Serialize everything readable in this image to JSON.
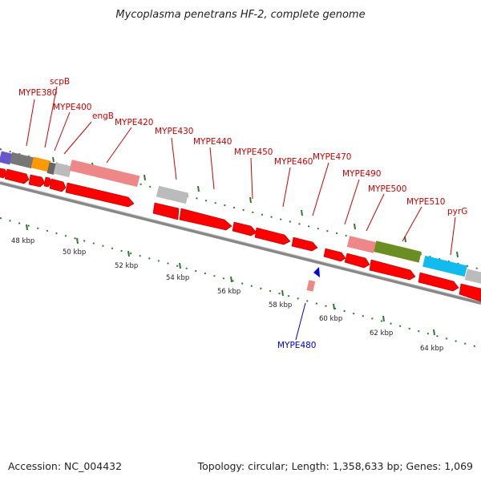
{
  "title": "Mycoplasma penetrans HF-2, complete genome",
  "footer": {
    "accession": "Accession: NC_004432",
    "summary": "Topology: circular; Length: 1,358,633 bp; Genes: 1,069"
  },
  "colors": {
    "gene_red": "#ff0000",
    "pseudo_pink": "#ee8888",
    "tick_green": "#337733",
    "label_red": "#cc0000",
    "label_blue": "#0000cc",
    "backbone": "#888888"
  },
  "ticks": [
    {
      "label": "48 kbp"
    },
    {
      "label": "50 kbp"
    },
    {
      "label": "52 kbp"
    },
    {
      "label": "54 kbp"
    },
    {
      "label": "56 kbp"
    },
    {
      "label": "58 kbp"
    },
    {
      "label": "60 kbp"
    },
    {
      "label": "62 kbp"
    },
    {
      "label": "64 kbp"
    }
  ],
  "genes": [
    {
      "name": "MYPE380",
      "color": "#cc0000"
    },
    {
      "name": "scpB",
      "color": "#cc0000"
    },
    {
      "name": "MYPE400",
      "color": "#cc0000"
    },
    {
      "name": "engB",
      "color": "#cc0000"
    },
    {
      "name": "MYPE420",
      "color": "#cc0000"
    },
    {
      "name": "MYPE430",
      "color": "#cc0000"
    },
    {
      "name": "MYPE440",
      "color": "#cc0000"
    },
    {
      "name": "MYPE450",
      "color": "#cc0000"
    },
    {
      "name": "MYPE460",
      "color": "#cc0000"
    },
    {
      "name": "MYPE470",
      "color": "#cc0000"
    },
    {
      "name": "MYPE490",
      "color": "#cc0000"
    },
    {
      "name": "MYPE500",
      "color": "#cc0000"
    },
    {
      "name": "MYPE510",
      "color": "#cc0000"
    },
    {
      "name": "pyrG",
      "color": "#cc0000"
    },
    {
      "name": "MYPE480",
      "color": "#0000cc"
    }
  ]
}
